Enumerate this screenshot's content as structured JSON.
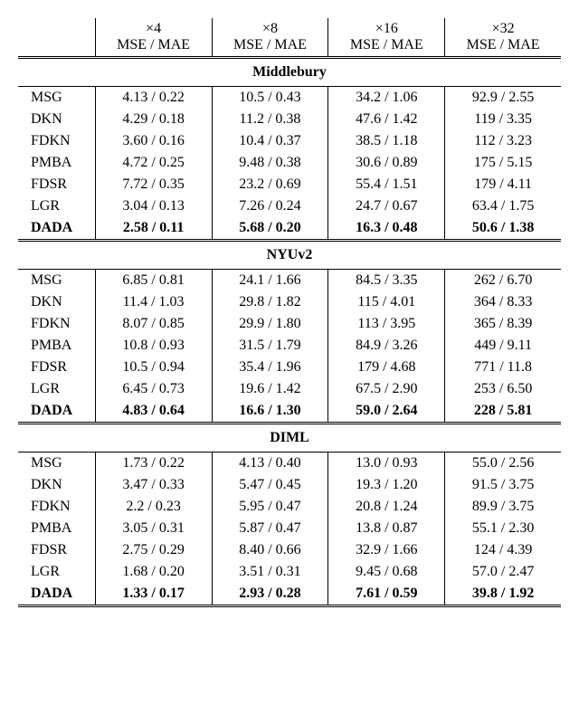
{
  "header": {
    "scales": [
      "×4",
      "×8",
      "×16",
      "×32"
    ],
    "metric": "MSE / MAE"
  },
  "sections": [
    {
      "title": "Middlebury",
      "rows": [
        {
          "method": "MSG",
          "bold": false,
          "vals": [
            "4.13 / 0.22",
            "10.5 / 0.43",
            "34.2 / 1.06",
            "92.9 / 2.55"
          ]
        },
        {
          "method": "DKN",
          "bold": false,
          "vals": [
            "4.29 / 0.18",
            "11.2 / 0.38",
            "47.6 / 1.42",
            "119 / 3.35"
          ]
        },
        {
          "method": "FDKN",
          "bold": false,
          "vals": [
            "3.60 / 0.16",
            "10.4 / 0.37",
            "38.5 / 1.18",
            "112 / 3.23"
          ]
        },
        {
          "method": "PMBA",
          "bold": false,
          "vals": [
            "4.72 / 0.25",
            "9.48 / 0.38",
            "30.6 / 0.89",
            "175 / 5.15"
          ]
        },
        {
          "method": "FDSR",
          "bold": false,
          "vals": [
            "7.72 / 0.35",
            "23.2 / 0.69",
            "55.4 / 1.51",
            "179 / 4.11"
          ]
        },
        {
          "method": "LGR",
          "bold": false,
          "vals": [
            "3.04 / 0.13",
            "7.26 / 0.24",
            "24.7 / 0.67",
            "63.4 / 1.75"
          ]
        },
        {
          "method": "DADA",
          "bold": true,
          "vals": [
            "2.58 / 0.11",
            "5.68 / 0.20",
            "16.3 / 0.48",
            "50.6 / 1.38"
          ]
        }
      ]
    },
    {
      "title": "NYUv2",
      "rows": [
        {
          "method": "MSG",
          "bold": false,
          "vals": [
            "6.85 / 0.81",
            "24.1 / 1.66",
            "84.5 / 3.35",
            "262 / 6.70"
          ]
        },
        {
          "method": "DKN",
          "bold": false,
          "vals": [
            "11.4 / 1.03",
            "29.8 / 1.82",
            "115 / 4.01",
            "364 / 8.33"
          ]
        },
        {
          "method": "FDKN",
          "bold": false,
          "vals": [
            "8.07 / 0.85",
            "29.9 / 1.80",
            "113 / 3.95",
            "365 / 8.39"
          ]
        },
        {
          "method": "PMBA",
          "bold": false,
          "vals": [
            "10.8 / 0.93",
            "31.5 / 1.79",
            "84.9 / 3.26",
            "449 / 9.11"
          ]
        },
        {
          "method": "FDSR",
          "bold": false,
          "vals": [
            "10.5 / 0.94",
            "35.4 / 1.96",
            "179 / 4.68",
            "771 / 11.8"
          ]
        },
        {
          "method": "LGR",
          "bold": false,
          "vals": [
            "6.45 / 0.73",
            "19.6 / 1.42",
            "67.5 / 2.90",
            "253 / 6.50"
          ]
        },
        {
          "method": "DADA",
          "bold": true,
          "vals": [
            "4.83 / 0.64",
            "16.6 / 1.30",
            "59.0 / 2.64",
            "228 / 5.81"
          ]
        }
      ]
    },
    {
      "title": "DIML",
      "rows": [
        {
          "method": "MSG",
          "bold": false,
          "vals": [
            "1.73 / 0.22",
            "4.13 / 0.40",
            "13.0 / 0.93",
            "55.0 / 2.56"
          ]
        },
        {
          "method": "DKN",
          "bold": false,
          "vals": [
            "3.47 / 0.33",
            "5.47 / 0.45",
            "19.3 / 1.20",
            "91.5 / 3.75"
          ]
        },
        {
          "method": "FDKN",
          "bold": false,
          "vals": [
            "2.2 / 0.23",
            "5.95 / 0.47",
            "20.8 / 1.24",
            "89.9 / 3.75"
          ]
        },
        {
          "method": "PMBA",
          "bold": false,
          "vals": [
            "3.05 / 0.31",
            "5.87 / 0.47",
            "13.8 / 0.87",
            "55.1 / 2.30"
          ]
        },
        {
          "method": "FDSR",
          "bold": false,
          "vals": [
            "2.75 / 0.29",
            "8.40 / 0.66",
            "32.9 / 1.66",
            "124 / 4.39"
          ]
        },
        {
          "method": "LGR",
          "bold": false,
          "vals": [
            "1.68 / 0.20",
            "3.51 / 0.31",
            "9.45 / 0.68",
            "57.0 / 2.47"
          ]
        },
        {
          "method": "DADA",
          "bold": true,
          "vals": [
            "1.33 / 0.17",
            "2.93 / 0.28",
            "7.61 / 0.59",
            "39.8 / 1.92"
          ]
        }
      ]
    }
  ]
}
